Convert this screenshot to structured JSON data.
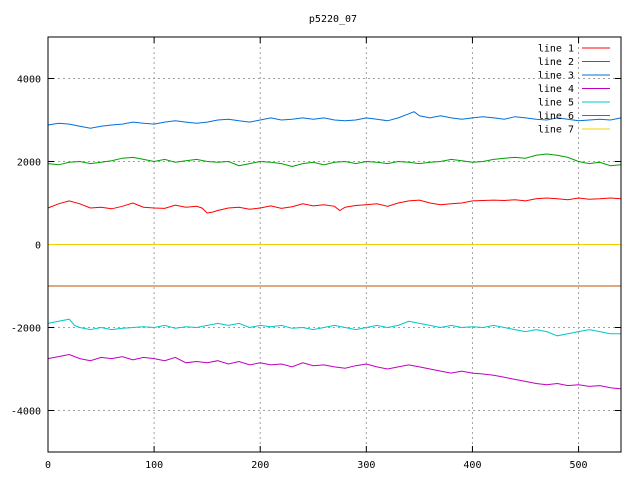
{
  "chart_data": {
    "type": "line",
    "title": "p5220_07",
    "xlabel": "",
    "ylabel": "",
    "xlim": [
      0,
      540
    ],
    "ylim": [
      -5000,
      5000
    ],
    "xticks": [
      0,
      100,
      200,
      300,
      400,
      500
    ],
    "yticks": [
      -4000,
      -2000,
      0,
      2000,
      4000
    ],
    "grid": true,
    "legend_position": "top-right",
    "series": [
      {
        "name": "line 1",
        "color": "#ff0000",
        "x": [
          0,
          10,
          20,
          30,
          40,
          50,
          60,
          70,
          80,
          90,
          100,
          110,
          120,
          130,
          140,
          145,
          150,
          155,
          160,
          170,
          180,
          190,
          200,
          210,
          220,
          230,
          240,
          250,
          260,
          270,
          275,
          280,
          290,
          300,
          310,
          320,
          330,
          340,
          350,
          360,
          370,
          380,
          390,
          400,
          410,
          420,
          430,
          440,
          450,
          460,
          470,
          480,
          490,
          500,
          510,
          520,
          530,
          540
        ],
        "y": [
          880,
          980,
          1050,
          980,
          880,
          900,
          860,
          920,
          1000,
          900,
          880,
          870,
          950,
          900,
          920,
          880,
          760,
          780,
          820,
          880,
          900,
          850,
          880,
          930,
          870,
          910,
          980,
          930,
          960,
          920,
          820,
          900,
          940,
          960,
          980,
          920,
          1000,
          1050,
          1070,
          1000,
          960,
          980,
          1000,
          1050,
          1060,
          1070,
          1060,
          1080,
          1050,
          1100,
          1120,
          1100,
          1080,
          1120,
          1090,
          1100,
          1120,
          1100
        ]
      },
      {
        "name": "line 2",
        "color": "#00a000",
        "x": [
          0,
          10,
          20,
          30,
          40,
          50,
          60,
          70,
          80,
          90,
          100,
          110,
          120,
          130,
          140,
          150,
          160,
          170,
          180,
          190,
          200,
          210,
          220,
          230,
          240,
          250,
          260,
          270,
          280,
          290,
          300,
          310,
          320,
          330,
          340,
          350,
          360,
          370,
          380,
          390,
          400,
          410,
          420,
          430,
          440,
          450,
          460,
          470,
          480,
          490,
          500,
          510,
          520,
          530,
          540
        ],
        "y": [
          1950,
          1920,
          1980,
          2000,
          1950,
          1980,
          2020,
          2080,
          2100,
          2050,
          2000,
          2050,
          1980,
          2020,
          2050,
          2000,
          1980,
          2000,
          1900,
          1950,
          2000,
          1980,
          1950,
          1880,
          1950,
          1980,
          1920,
          1980,
          2000,
          1950,
          2000,
          1980,
          1950,
          2000,
          1980,
          1950,
          1980,
          2000,
          2050,
          2020,
          1980,
          2000,
          2050,
          2080,
          2100,
          2080,
          2150,
          2180,
          2150,
          2100,
          2000,
          1950,
          1980,
          1900,
          1920
        ]
      },
      {
        "name": "line 3",
        "color": "#0070dd",
        "x": [
          0,
          10,
          20,
          30,
          40,
          50,
          60,
          70,
          80,
          90,
          100,
          110,
          120,
          130,
          140,
          150,
          160,
          170,
          180,
          190,
          200,
          210,
          220,
          230,
          240,
          250,
          260,
          270,
          280,
          290,
          300,
          310,
          320,
          330,
          340,
          345,
          350,
          360,
          370,
          380,
          390,
          400,
          410,
          420,
          430,
          440,
          450,
          460,
          470,
          480,
          490,
          500,
          510,
          520,
          530,
          540
        ],
        "y": [
          2880,
          2920,
          2900,
          2850,
          2800,
          2850,
          2880,
          2900,
          2950,
          2920,
          2900,
          2950,
          2980,
          2950,
          2920,
          2950,
          3000,
          3020,
          2980,
          2950,
          3000,
          3050,
          3000,
          3020,
          3050,
          3020,
          3050,
          3000,
          2980,
          3000,
          3050,
          3020,
          2980,
          3050,
          3150,
          3200,
          3100,
          3050,
          3100,
          3050,
          3020,
          3050,
          3080,
          3050,
          3020,
          3080,
          3050,
          3020,
          3000,
          3050,
          3020,
          2980,
          3000,
          3020,
          3000,
          3050
        ]
      },
      {
        "name": "line 4",
        "color": "#c000c0",
        "x": [
          0,
          10,
          20,
          30,
          40,
          50,
          60,
          70,
          80,
          90,
          100,
          110,
          120,
          130,
          140,
          150,
          160,
          170,
          180,
          190,
          200,
          210,
          220,
          230,
          240,
          250,
          260,
          270,
          280,
          290,
          300,
          310,
          320,
          330,
          340,
          350,
          360,
          370,
          380,
          390,
          400,
          410,
          420,
          430,
          440,
          450,
          460,
          470,
          480,
          490,
          500,
          510,
          520,
          530,
          540
        ],
        "y": [
          -2750,
          -2700,
          -2650,
          -2750,
          -2800,
          -2720,
          -2750,
          -2700,
          -2780,
          -2720,
          -2750,
          -2800,
          -2720,
          -2850,
          -2820,
          -2850,
          -2800,
          -2880,
          -2820,
          -2900,
          -2850,
          -2900,
          -2880,
          -2950,
          -2850,
          -2920,
          -2900,
          -2950,
          -2980,
          -2920,
          -2880,
          -2950,
          -3000,
          -2950,
          -2900,
          -2950,
          -3000,
          -3050,
          -3100,
          -3050,
          -3100,
          -3120,
          -3150,
          -3200,
          -3250,
          -3300,
          -3350,
          -3380,
          -3350,
          -3400,
          -3380,
          -3420,
          -3400,
          -3450,
          -3480
        ]
      },
      {
        "name": "line 5",
        "color": "#00c8c8",
        "x": [
          0,
          10,
          20,
          25,
          30,
          40,
          50,
          60,
          70,
          80,
          90,
          100,
          110,
          120,
          130,
          140,
          150,
          160,
          170,
          180,
          190,
          200,
          210,
          220,
          230,
          240,
          250,
          260,
          270,
          280,
          290,
          300,
          310,
          320,
          330,
          340,
          350,
          360,
          370,
          380,
          390,
          400,
          410,
          420,
          430,
          440,
          450,
          460,
          470,
          480,
          490,
          500,
          510,
          520,
          530,
          540
        ],
        "y": [
          -1900,
          -1850,
          -1800,
          -1950,
          -2000,
          -2050,
          -2000,
          -2050,
          -2020,
          -2000,
          -1980,
          -2000,
          -1950,
          -2020,
          -1980,
          -2000,
          -1950,
          -1900,
          -1950,
          -1900,
          -2000,
          -1950,
          -1980,
          -1950,
          -2020,
          -2000,
          -2050,
          -2000,
          -1950,
          -2000,
          -2050,
          -2000,
          -1950,
          -2000,
          -1950,
          -1850,
          -1900,
          -1950,
          -2000,
          -1950,
          -2000,
          -1980,
          -2000,
          -1950,
          -2000,
          -2050,
          -2100,
          -2050,
          -2100,
          -2200,
          -2150,
          -2100,
          -2050,
          -2100,
          -2150,
          -2150
        ]
      },
      {
        "name": "line 6",
        "color": "#c05000",
        "x": [
          0,
          540
        ],
        "y": [
          -1000,
          -1000
        ]
      },
      {
        "name": "line 7",
        "color": "#f0d000",
        "x": [
          0,
          540
        ],
        "y": [
          0,
          0
        ]
      }
    ]
  }
}
